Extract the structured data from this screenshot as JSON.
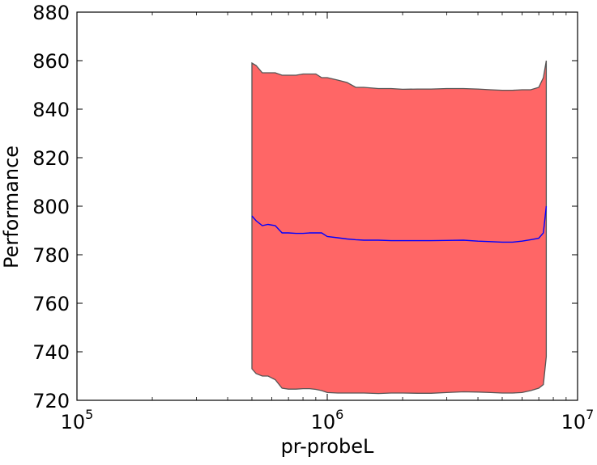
{
  "chart_data": {
    "type": "area",
    "xlabel": "pr-probeL",
    "ylabel": "Performance",
    "x_scale": "log",
    "xlim": [
      100000,
      10000000
    ],
    "ylim": [
      720,
      880
    ],
    "grid": false,
    "x_ticks": [
      {
        "value": 100000,
        "base": "10",
        "exp": "5"
      },
      {
        "value": 1000000,
        "base": "10",
        "exp": "6"
      },
      {
        "value": 10000000,
        "base": "10",
        "exp": "7"
      }
    ],
    "y_ticks": [
      720,
      740,
      760,
      780,
      800,
      820,
      840,
      860,
      880
    ],
    "colors": {
      "band_fill": "#ff6666",
      "band_edge": "#555555",
      "mean_line": "#0000ff"
    },
    "series": [
      {
        "x": [
          500000,
          520000,
          550000,
          580000,
          620000,
          660000,
          700000,
          750000,
          800000,
          850000,
          900000,
          950000,
          1000000,
          1100000,
          1200000,
          1300000,
          1400000,
          1600000,
          1800000,
          2000000,
          2300000,
          2600000,
          3000000,
          3500000,
          4000000,
          4500000,
          5000000,
          5500000,
          6000000,
          6500000,
          7000000,
          7300000,
          7500000
        ],
        "mean": [
          796,
          794,
          792,
          792.5,
          792,
          789,
          789,
          788.8,
          788.8,
          789,
          789,
          789,
          787.5,
          787,
          786.5,
          786.2,
          786,
          786,
          785.8,
          785.8,
          785.8,
          785.8,
          785.9,
          786,
          785.6,
          785.4,
          785.2,
          785.2,
          785.6,
          786.2,
          786.8,
          789,
          800
        ],
        "upper": [
          859,
          858,
          855,
          855,
          855,
          854,
          854,
          854,
          854.5,
          854.5,
          854.5,
          853,
          853,
          852,
          851,
          849,
          849,
          848.5,
          848.5,
          848.2,
          848.3,
          848.3,
          848.5,
          848.5,
          848.3,
          848,
          847.8,
          847.8,
          848,
          848,
          849,
          853,
          860
        ],
        "lower": [
          733,
          731,
          730,
          730,
          728.5,
          725,
          724.6,
          724.6,
          724.8,
          724.8,
          724.5,
          724,
          723.2,
          723,
          723,
          723,
          723,
          722.8,
          723,
          723,
          722.9,
          722.9,
          723.2,
          723.5,
          723.4,
          723.2,
          723,
          723,
          723.2,
          724,
          725,
          726.5,
          738
        ]
      }
    ]
  }
}
